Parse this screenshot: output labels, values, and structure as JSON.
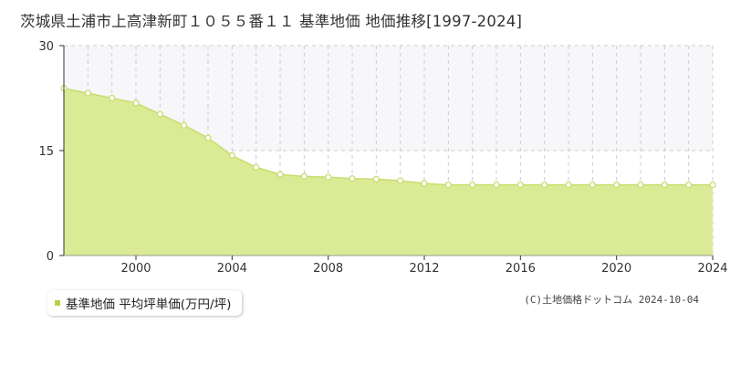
{
  "title": "茨城県土浦市上高津新町１０５５番１１ 基準地価 地価推移[1997-2024]",
  "legend": {
    "label": "基準地価 平均坪単価(万円/坪)"
  },
  "copyright": "(C)土地価格ドットコム 2024-10-04",
  "colors": {
    "fill": "#dbeb95",
    "line": "#c8dd6e",
    "marker_fill": "#ffffff",
    "marker_stroke": "#c8dd6e",
    "legend_swatch": "#b3d24a",
    "upper_band": "#f7f7f9"
  },
  "chart_data": {
    "type": "area",
    "title": "",
    "xlabel": "",
    "ylabel": "",
    "series": [
      {
        "name": "基準地価 平均坪単価(万円/坪)",
        "x": [
          1997,
          1998,
          1999,
          2000,
          2001,
          2002,
          2003,
          2004,
          2005,
          2006,
          2007,
          2008,
          2009,
          2010,
          2011,
          2012,
          2013,
          2014,
          2015,
          2016,
          2017,
          2018,
          2019,
          2020,
          2021,
          2022,
          2023,
          2024
        ],
        "y": [
          23.9,
          23.2,
          22.5,
          21.8,
          20.2,
          18.6,
          16.8,
          14.3,
          12.6,
          11.6,
          11.3,
          11.2,
          11.0,
          10.9,
          10.7,
          10.3,
          10.1,
          10.1,
          10.1,
          10.1,
          10.1,
          10.1,
          10.1,
          10.1,
          10.1,
          10.1,
          10.1,
          10.1
        ]
      }
    ],
    "xlim": [
      1997,
      2024
    ],
    "ylim": [
      0,
      30
    ],
    "x_ticks": [
      "2000",
      "2004",
      "2008",
      "2012",
      "2016",
      "2020",
      "2024"
    ],
    "y_ticks": [
      "0",
      "15",
      "30"
    ],
    "grid": true,
    "legend_position": "bottom-left"
  }
}
